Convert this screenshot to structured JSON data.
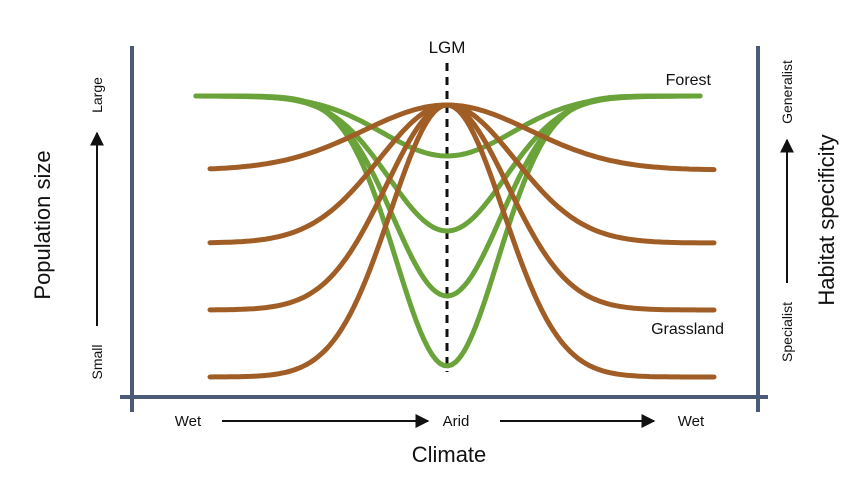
{
  "diagram": {
    "top_marker": "LGM",
    "x_title": "Climate",
    "x_points": {
      "left": "Wet",
      "center": "Arid",
      "right": "Wet"
    },
    "y_left": {
      "title": "Population size",
      "low": "Small",
      "high": "Large"
    },
    "y_right": {
      "title": "Habitat specificity",
      "low": "Specialist",
      "high": "Generalist"
    },
    "curve_groups": [
      {
        "label": "Forest",
        "color": "#6aa33a",
        "count": 4
      },
      {
        "label": "Grassland",
        "color": "#a05e26",
        "count": 4
      }
    ],
    "colors": {
      "axis": "#4a5a78",
      "forest": "#6aa33a",
      "grassland": "#a05e26",
      "text": "#111111"
    }
  }
}
